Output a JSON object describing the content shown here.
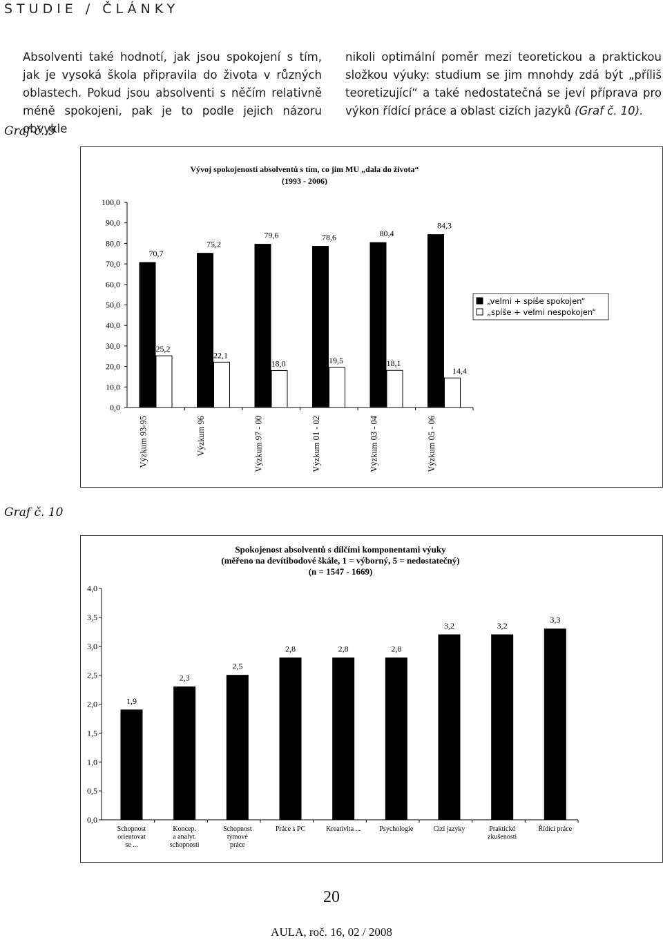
{
  "header": {
    "section": "STUDIE / ČLÁNKY"
  },
  "body_text": {
    "left_column": "Absolventi také hodnotí, jak jsou spokojení s tím, jak je vysoká škola připravila do života v různých oblastech. Pokud jsou absolventi s něčím relativně méně spokojeni, pak je to podle jejich názoru obvykle",
    "right_column": "nikoli optimální poměr mezi teoretickou a praktickou složkou výuky: studium se jim mnohdy zdá být „příliš teoretizující“ a také nedostatečná se jeví příprava pro výkon řídící práce a oblast cizích jazyků",
    "right_column_ref": "(Graf č. 10)."
  },
  "graf9": {
    "caption": "Graf č. 9",
    "title_line1": "Vývoj spokojenosti absolventů s tím, co jim MU „dala do života“",
    "title_line2": "(1993 - 2006)",
    "legend": [
      "„velmi + spíše spokojen“",
      "„spíše + velmi nespokojen“"
    ],
    "colors": {
      "satisfied": "#000000",
      "unsatisfied": "#ffffff"
    }
  },
  "graf10": {
    "caption": "Graf č. 10",
    "title_line1": "Spokojenost absolventů s dílčími komponentami výuky",
    "title_line2": "(měřeno na devítibodové škále, 1 = výborný, 5 = nedostatečný)",
    "title_line3": "(n = 1547 - 1669)"
  },
  "chart_data": [
    {
      "type": "bar",
      "title": "Vývoj spokojenosti absolventů s tím, co jim MU „dala do života“ (1993 - 2006)",
      "categories": [
        "Výzkum 93-95",
        "Výzkum 96",
        "Výzkum 97 - 00",
        "Výzkum 01 - 02",
        "Výzkum 03 - 04",
        "Výzkum 05 - 06"
      ],
      "series": [
        {
          "name": "„velmi + spíše spokojen“",
          "values": [
            70.7,
            75.2,
            79.6,
            78.6,
            80.4,
            84.3
          ],
          "labels": [
            "70,7",
            "75,2",
            "79,6",
            "78,6",
            "80,4",
            "84,3"
          ]
        },
        {
          "name": "„spíše + velmi nespokojen“",
          "values": [
            25.2,
            22.1,
            18.0,
            19.5,
            18.1,
            14.4
          ],
          "labels": [
            "25,2",
            "22,1",
            "18,0",
            "19,5",
            "18,1",
            "14,4"
          ]
        }
      ],
      "ylim": [
        0,
        100
      ],
      "yticks": [
        "0,0",
        "10,0",
        "20,0",
        "30,0",
        "40,0",
        "50,0",
        "60,0",
        "70,0",
        "80,0",
        "90,0",
        "100,0"
      ],
      "grid": false,
      "legend_position": "right"
    },
    {
      "type": "bar",
      "title": "Spokojenost absolventů s dílčími komponentami výuky (měřeno na devítibodové škále, 1 = výborný, 5 = nedostatečný) (n = 1547 - 1669)",
      "categories": [
        [
          "Schopnost",
          "orientovat",
          "se ..."
        ],
        [
          "Koncep.",
          "a analyt.",
          "schopnosti"
        ],
        [
          "Schopnost",
          "týmové",
          "práce"
        ],
        [
          "Práce s PC"
        ],
        [
          "Kreativita ..."
        ],
        [
          "Psychologie"
        ],
        [
          "Cizí jazyky"
        ],
        [
          "Praktické",
          "zkušenosti"
        ],
        [
          "Řídící práce"
        ]
      ],
      "values": [
        1.9,
        2.3,
        2.5,
        2.8,
        2.8,
        2.8,
        3.2,
        3.2,
        3.3
      ],
      "labels": [
        "1,9",
        "2,3",
        "2,5",
        "2,8",
        "2,8",
        "2,8",
        "3,2",
        "3,2",
        "3,3"
      ],
      "ylim": [
        0,
        4
      ],
      "yticks": [
        "0,0",
        "0,5",
        "1,0",
        "1,5",
        "2,0",
        "2,5",
        "3,0",
        "3,5",
        "4,0"
      ],
      "grid": false
    }
  ],
  "page": {
    "number": "20",
    "footer": "AULA, roč. 16, 02 / 2008"
  }
}
